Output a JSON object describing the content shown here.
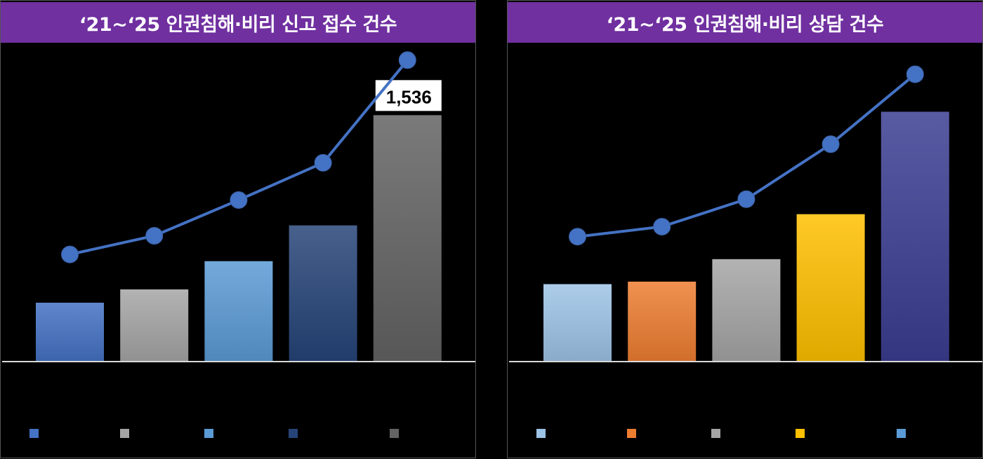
{
  "chart_data": [
    {
      "type": "bar",
      "title": "‘21~‘25 인권침해·비리 신고 접수 건수",
      "categories": [
        "",
        "",
        "",
        "",
        ""
      ],
      "values": [
        367,
        450,
        626,
        849,
        1536
      ],
      "data_labels": [
        "",
        "",
        "",
        "",
        "1,536"
      ],
      "line_overlay": [
        668,
        784,
        1007,
        1239,
        1879
      ],
      "ylim": [
        0,
        1900
      ],
      "grid": false,
      "legend": "bottom",
      "colors": [
        "#4472c4",
        "#a5a5a5",
        "#5b9bd5",
        "#264478",
        "#636363"
      ],
      "line_color": "#4472c4"
    },
    {
      "type": "bar",
      "title": "‘21~‘25 인권침해·비리 상담 건수",
      "categories": [
        "",
        "",
        "",
        "",
        ""
      ],
      "values": [
        31,
        32,
        41,
        59,
        100
      ],
      "data_labels": [
        "",
        "",
        "",
        "",
        ""
      ],
      "line_overlay": [
        50,
        54,
        65,
        87,
        115
      ],
      "ylim": [
        0,
        122
      ],
      "grid": false,
      "legend": "bottom",
      "colors": [
        "#9dc3e6",
        "#ed7d31",
        "#a5a5a5",
        "#ffc000",
        "#3b3d91"
      ],
      "legend_colors": [
        "#9dc3e6",
        "#ed7d31",
        "#a5a5a5",
        "#ffc000",
        "#5b9bd5"
      ],
      "line_color": "#4472c4"
    }
  ]
}
